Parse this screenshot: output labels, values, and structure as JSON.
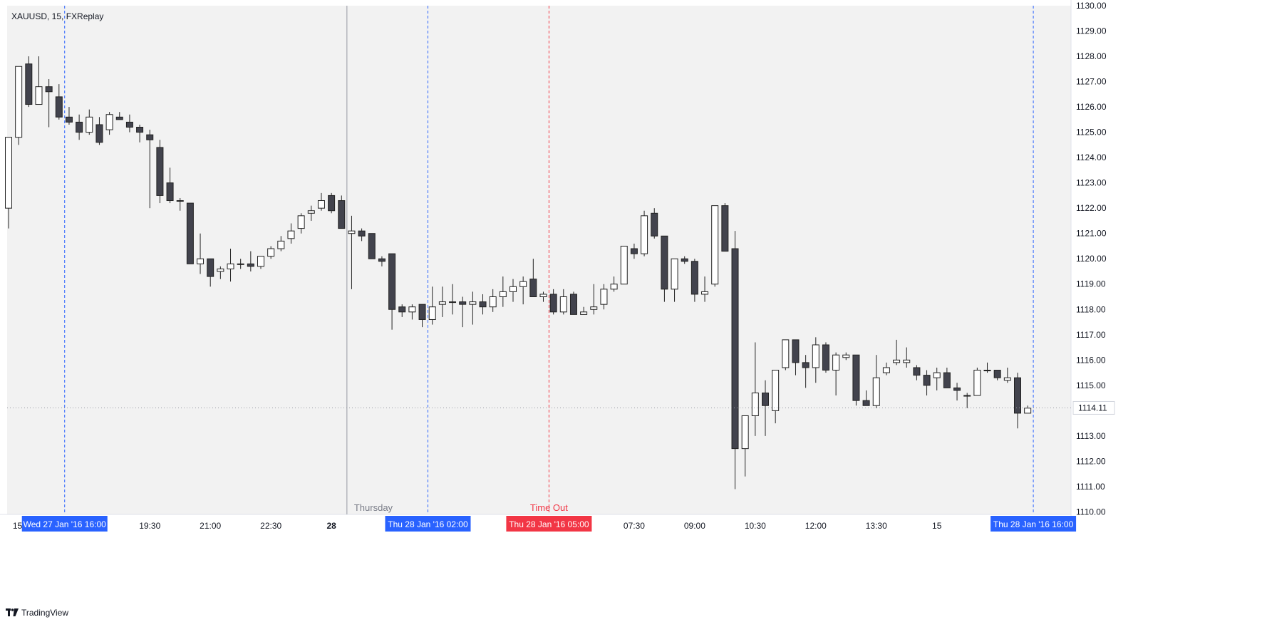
{
  "header": {
    "title": "XAUUSD, 15, FXReplay"
  },
  "footer": {
    "brand": "TradingView"
  },
  "colors": {
    "background": "#f2f2f2",
    "bull": "#ffffff",
    "bear": "#42434d",
    "candle_outline": "#222222",
    "marker_blue": "#2962ff",
    "marker_red": "#f23645",
    "session_line": "#9598a1"
  },
  "chart_data": {
    "type": "candlestick",
    "symbol": "XAUUSD",
    "interval": "15",
    "source": "FXReplay",
    "ylim": [
      1109.9,
      1130.0
    ],
    "y_ticks": [
      "1110.00",
      "1111.00",
      "1112.00",
      "1113.00",
      "1114.00",
      "1115.00",
      "1116.00",
      "1117.00",
      "1118.00",
      "1119.00",
      "1120.00",
      "1121.00",
      "1122.00",
      "1123.00",
      "1124.00",
      "1125.00",
      "1126.00",
      "1127.00",
      "1128.00",
      "1129.00",
      "1130.00"
    ],
    "x_ticks": [
      {
        "index": 1,
        "label": "15:"
      },
      {
        "index": 14,
        "label": "19:30"
      },
      {
        "index": 20,
        "label": "21:00"
      },
      {
        "index": 26,
        "label": "22:30"
      },
      {
        "index": 32,
        "label": "28",
        "bold": true
      },
      {
        "index": 62,
        "label": "07:30"
      },
      {
        "index": 68,
        "label": "09:00"
      },
      {
        "index": 74,
        "label": "10:30"
      },
      {
        "index": 80,
        "label": "12:00"
      },
      {
        "index": 86,
        "label": "13:30"
      },
      {
        "index": 92,
        "label": "15"
      },
      {
        "index": 98,
        "label": "18:("
      }
    ],
    "last_price": "1114.11",
    "candles": [
      {
        "o": 1122.0,
        "h": 1124.8,
        "l": 1121.2,
        "c": 1124.8
      },
      {
        "o": 1124.8,
        "h": 1127.6,
        "l": 1124.5,
        "c": 1127.6
      },
      {
        "o": 1127.7,
        "h": 1128.0,
        "l": 1126.0,
        "c": 1126.1
      },
      {
        "o": 1126.1,
        "h": 1128.0,
        "l": 1126.1,
        "c": 1126.8
      },
      {
        "o": 1126.8,
        "h": 1127.1,
        "l": 1125.2,
        "c": 1126.6
      },
      {
        "o": 1126.4,
        "h": 1126.9,
        "l": 1125.5,
        "c": 1125.6
      },
      {
        "o": 1125.6,
        "h": 1126.0,
        "l": 1125.3,
        "c": 1125.4
      },
      {
        "o": 1125.4,
        "h": 1125.7,
        "l": 1124.7,
        "c": 1125.0
      },
      {
        "o": 1125.0,
        "h": 1125.9,
        "l": 1124.9,
        "c": 1125.6
      },
      {
        "o": 1125.3,
        "h": 1125.6,
        "l": 1124.5,
        "c": 1124.6
      },
      {
        "o": 1125.1,
        "h": 1125.8,
        "l": 1124.9,
        "c": 1125.7
      },
      {
        "o": 1125.6,
        "h": 1125.8,
        "l": 1125.5,
        "c": 1125.5
      },
      {
        "o": 1125.4,
        "h": 1125.7,
        "l": 1125.0,
        "c": 1125.2
      },
      {
        "o": 1125.2,
        "h": 1125.3,
        "l": 1124.6,
        "c": 1125.0
      },
      {
        "o": 1124.9,
        "h": 1125.1,
        "l": 1122.0,
        "c": 1124.7
      },
      {
        "o": 1124.4,
        "h": 1124.7,
        "l": 1122.2,
        "c": 1122.5
      },
      {
        "o": 1123.0,
        "h": 1123.6,
        "l": 1122.2,
        "c": 1122.3
      },
      {
        "o": 1122.3,
        "h": 1122.4,
        "l": 1121.9,
        "c": 1122.3
      },
      {
        "o": 1122.2,
        "h": 1122.2,
        "l": 1119.8,
        "c": 1119.8
      },
      {
        "o": 1119.8,
        "h": 1121.0,
        "l": 1119.4,
        "c": 1120.0
      },
      {
        "o": 1120.0,
        "h": 1120.0,
        "l": 1118.9,
        "c": 1119.3
      },
      {
        "o": 1119.5,
        "h": 1119.7,
        "l": 1119.2,
        "c": 1119.6
      },
      {
        "o": 1119.6,
        "h": 1120.4,
        "l": 1119.1,
        "c": 1119.8
      },
      {
        "o": 1119.8,
        "h": 1120.0,
        "l": 1119.6,
        "c": 1119.8
      },
      {
        "o": 1119.8,
        "h": 1120.3,
        "l": 1119.5,
        "c": 1119.7
      },
      {
        "o": 1119.7,
        "h": 1120.1,
        "l": 1119.6,
        "c": 1120.1
      },
      {
        "o": 1120.1,
        "h": 1120.5,
        "l": 1120.0,
        "c": 1120.4
      },
      {
        "o": 1120.4,
        "h": 1120.9,
        "l": 1120.3,
        "c": 1120.7
      },
      {
        "o": 1120.8,
        "h": 1121.4,
        "l": 1120.6,
        "c": 1121.1
      },
      {
        "o": 1121.2,
        "h": 1121.8,
        "l": 1121.0,
        "c": 1121.7
      },
      {
        "o": 1121.8,
        "h": 1122.1,
        "l": 1121.5,
        "c": 1121.9
      },
      {
        "o": 1122.0,
        "h": 1122.6,
        "l": 1121.9,
        "c": 1122.3
      },
      {
        "o": 1122.5,
        "h": 1122.6,
        "l": 1121.8,
        "c": 1121.9
      },
      {
        "o": 1122.3,
        "h": 1122.5,
        "l": 1121.2,
        "c": 1121.2
      },
      {
        "o": 1121.0,
        "h": 1121.7,
        "l": 1118.8,
        "c": 1121.1
      },
      {
        "o": 1121.1,
        "h": 1121.2,
        "l": 1120.7,
        "c": 1120.9
      },
      {
        "o": 1121.0,
        "h": 1121.0,
        "l": 1120.0,
        "c": 1120.0
      },
      {
        "o": 1120.0,
        "h": 1120.1,
        "l": 1119.7,
        "c": 1119.9
      },
      {
        "o": 1120.2,
        "h": 1120.2,
        "l": 1117.2,
        "c": 1118.0
      },
      {
        "o": 1118.1,
        "h": 1118.2,
        "l": 1117.7,
        "c": 1117.9
      },
      {
        "o": 1117.9,
        "h": 1118.2,
        "l": 1117.6,
        "c": 1118.1
      },
      {
        "o": 1118.2,
        "h": 1118.2,
        "l": 1117.3,
        "c": 1117.6
      },
      {
        "o": 1117.6,
        "h": 1118.9,
        "l": 1117.4,
        "c": 1118.1
      },
      {
        "o": 1118.2,
        "h": 1118.9,
        "l": 1117.7,
        "c": 1118.3
      },
      {
        "o": 1118.3,
        "h": 1119.0,
        "l": 1117.8,
        "c": 1118.3
      },
      {
        "o": 1118.3,
        "h": 1118.5,
        "l": 1117.3,
        "c": 1118.2
      },
      {
        "o": 1118.2,
        "h": 1118.7,
        "l": 1117.4,
        "c": 1118.3
      },
      {
        "o": 1118.3,
        "h": 1118.6,
        "l": 1117.8,
        "c": 1118.1
      },
      {
        "o": 1118.1,
        "h": 1118.8,
        "l": 1117.9,
        "c": 1118.5
      },
      {
        "o": 1118.5,
        "h": 1119.3,
        "l": 1118.1,
        "c": 1118.7
      },
      {
        "o": 1118.7,
        "h": 1119.2,
        "l": 1118.3,
        "c": 1118.9
      },
      {
        "o": 1118.9,
        "h": 1119.3,
        "l": 1118.2,
        "c": 1119.1
      },
      {
        "o": 1119.2,
        "h": 1120.0,
        "l": 1118.7,
        "c": 1118.5
      },
      {
        "o": 1118.5,
        "h": 1118.7,
        "l": 1118.3,
        "c": 1118.6
      },
      {
        "o": 1118.6,
        "h": 1118.8,
        "l": 1117.8,
        "c": 1117.9
      },
      {
        "o": 1117.9,
        "h": 1118.8,
        "l": 1117.8,
        "c": 1118.5
      },
      {
        "o": 1118.6,
        "h": 1118.7,
        "l": 1117.8,
        "c": 1117.8
      },
      {
        "o": 1117.8,
        "h": 1118.1,
        "l": 1117.8,
        "c": 1117.9
      },
      {
        "o": 1118.0,
        "h": 1119.0,
        "l": 1117.8,
        "c": 1118.1
      },
      {
        "o": 1118.2,
        "h": 1119.0,
        "l": 1118.0,
        "c": 1118.8
      },
      {
        "o": 1118.8,
        "h": 1119.3,
        "l": 1118.7,
        "c": 1119.0
      },
      {
        "o": 1119.0,
        "h": 1120.5,
        "l": 1119.0,
        "c": 1120.5
      },
      {
        "o": 1120.4,
        "h": 1120.6,
        "l": 1120.0,
        "c": 1120.2
      },
      {
        "o": 1120.2,
        "h": 1121.9,
        "l": 1120.1,
        "c": 1121.7
      },
      {
        "o": 1121.8,
        "h": 1122.0,
        "l": 1120.8,
        "c": 1120.9
      },
      {
        "o": 1120.9,
        "h": 1120.9,
        "l": 1118.3,
        "c": 1118.8
      },
      {
        "o": 1118.8,
        "h": 1120.0,
        "l": 1118.3,
        "c": 1120.0
      },
      {
        "o": 1120.0,
        "h": 1120.1,
        "l": 1119.8,
        "c": 1119.9
      },
      {
        "o": 1119.9,
        "h": 1120.0,
        "l": 1118.3,
        "c": 1118.6
      },
      {
        "o": 1118.6,
        "h": 1119.3,
        "l": 1118.3,
        "c": 1118.7
      },
      {
        "o": 1119.0,
        "h": 1122.1,
        "l": 1118.9,
        "c": 1122.1
      },
      {
        "o": 1122.1,
        "h": 1122.2,
        "l": 1120.3,
        "c": 1120.3
      },
      {
        "o": 1120.4,
        "h": 1121.1,
        "l": 1110.9,
        "c": 1112.5
      },
      {
        "o": 1112.5,
        "h": 1113.8,
        "l": 1111.4,
        "c": 1113.8
      },
      {
        "o": 1113.8,
        "h": 1116.7,
        "l": 1113.0,
        "c": 1114.7
      },
      {
        "o": 1114.7,
        "h": 1115.2,
        "l": 1113.0,
        "c": 1114.2
      },
      {
        "o": 1114.0,
        "h": 1115.6,
        "l": 1113.5,
        "c": 1115.6
      },
      {
        "o": 1115.7,
        "h": 1116.8,
        "l": 1115.6,
        "c": 1116.8
      },
      {
        "o": 1116.8,
        "h": 1116.8,
        "l": 1115.4,
        "c": 1115.9
      },
      {
        "o": 1115.9,
        "h": 1116.2,
        "l": 1114.9,
        "c": 1115.7
      },
      {
        "o": 1115.7,
        "h": 1116.9,
        "l": 1115.1,
        "c": 1116.6
      },
      {
        "o": 1116.6,
        "h": 1116.7,
        "l": 1115.5,
        "c": 1115.6
      },
      {
        "o": 1115.6,
        "h": 1116.3,
        "l": 1114.6,
        "c": 1116.2
      },
      {
        "o": 1116.1,
        "h": 1116.3,
        "l": 1116.0,
        "c": 1116.2
      },
      {
        "o": 1116.2,
        "h": 1116.2,
        "l": 1114.2,
        "c": 1114.4
      },
      {
        "o": 1114.4,
        "h": 1114.8,
        "l": 1114.2,
        "c": 1114.2
      },
      {
        "o": 1114.2,
        "h": 1116.2,
        "l": 1114.1,
        "c": 1115.3
      },
      {
        "o": 1115.5,
        "h": 1115.9,
        "l": 1115.4,
        "c": 1115.7
      },
      {
        "o": 1115.9,
        "h": 1116.8,
        "l": 1115.8,
        "c": 1116.0
      },
      {
        "o": 1115.9,
        "h": 1116.5,
        "l": 1115.7,
        "c": 1116.0
      },
      {
        "o": 1115.7,
        "h": 1115.8,
        "l": 1115.2,
        "c": 1115.4
      },
      {
        "o": 1115.4,
        "h": 1115.6,
        "l": 1114.6,
        "c": 1115.0
      },
      {
        "o": 1115.3,
        "h": 1115.7,
        "l": 1114.8,
        "c": 1115.5
      },
      {
        "o": 1115.5,
        "h": 1115.7,
        "l": 1115.0,
        "c": 1114.9
      },
      {
        "o": 1114.9,
        "h": 1115.1,
        "l": 1114.4,
        "c": 1114.8
      },
      {
        "o": 1114.6,
        "h": 1114.7,
        "l": 1114.1,
        "c": 1114.6
      },
      {
        "o": 1114.6,
        "h": 1115.7,
        "l": 1114.6,
        "c": 1115.6
      },
      {
        "o": 1115.6,
        "h": 1115.9,
        "l": 1115.5,
        "c": 1115.6
      },
      {
        "o": 1115.6,
        "h": 1115.6,
        "l": 1115.2,
        "c": 1115.3
      },
      {
        "o": 1115.2,
        "h": 1115.7,
        "l": 1115.1,
        "c": 1115.3
      },
      {
        "o": 1115.3,
        "h": 1115.5,
        "l": 1113.3,
        "c": 1113.9
      },
      {
        "o": 1113.9,
        "h": 1114.2,
        "l": 1113.9,
        "c": 1114.1
      }
    ],
    "vertical_markers": [
      {
        "index": 6,
        "label": "Wed 27 Jan '16   16:00",
        "color": "#2962ff"
      },
      {
        "index": 42,
        "label": "Thu 28 Jan '16   02:00",
        "color": "#2962ff"
      },
      {
        "index": 54,
        "label": "Thu 28 Jan '16   05:00",
        "color": "#f23645",
        "top_label": "Time Out"
      },
      {
        "index": 102,
        "label": "Thu 28 Jan '16   16:00",
        "color": "#2962ff"
      }
    ],
    "session_break": {
      "index": 34,
      "label": "Thursday"
    }
  }
}
